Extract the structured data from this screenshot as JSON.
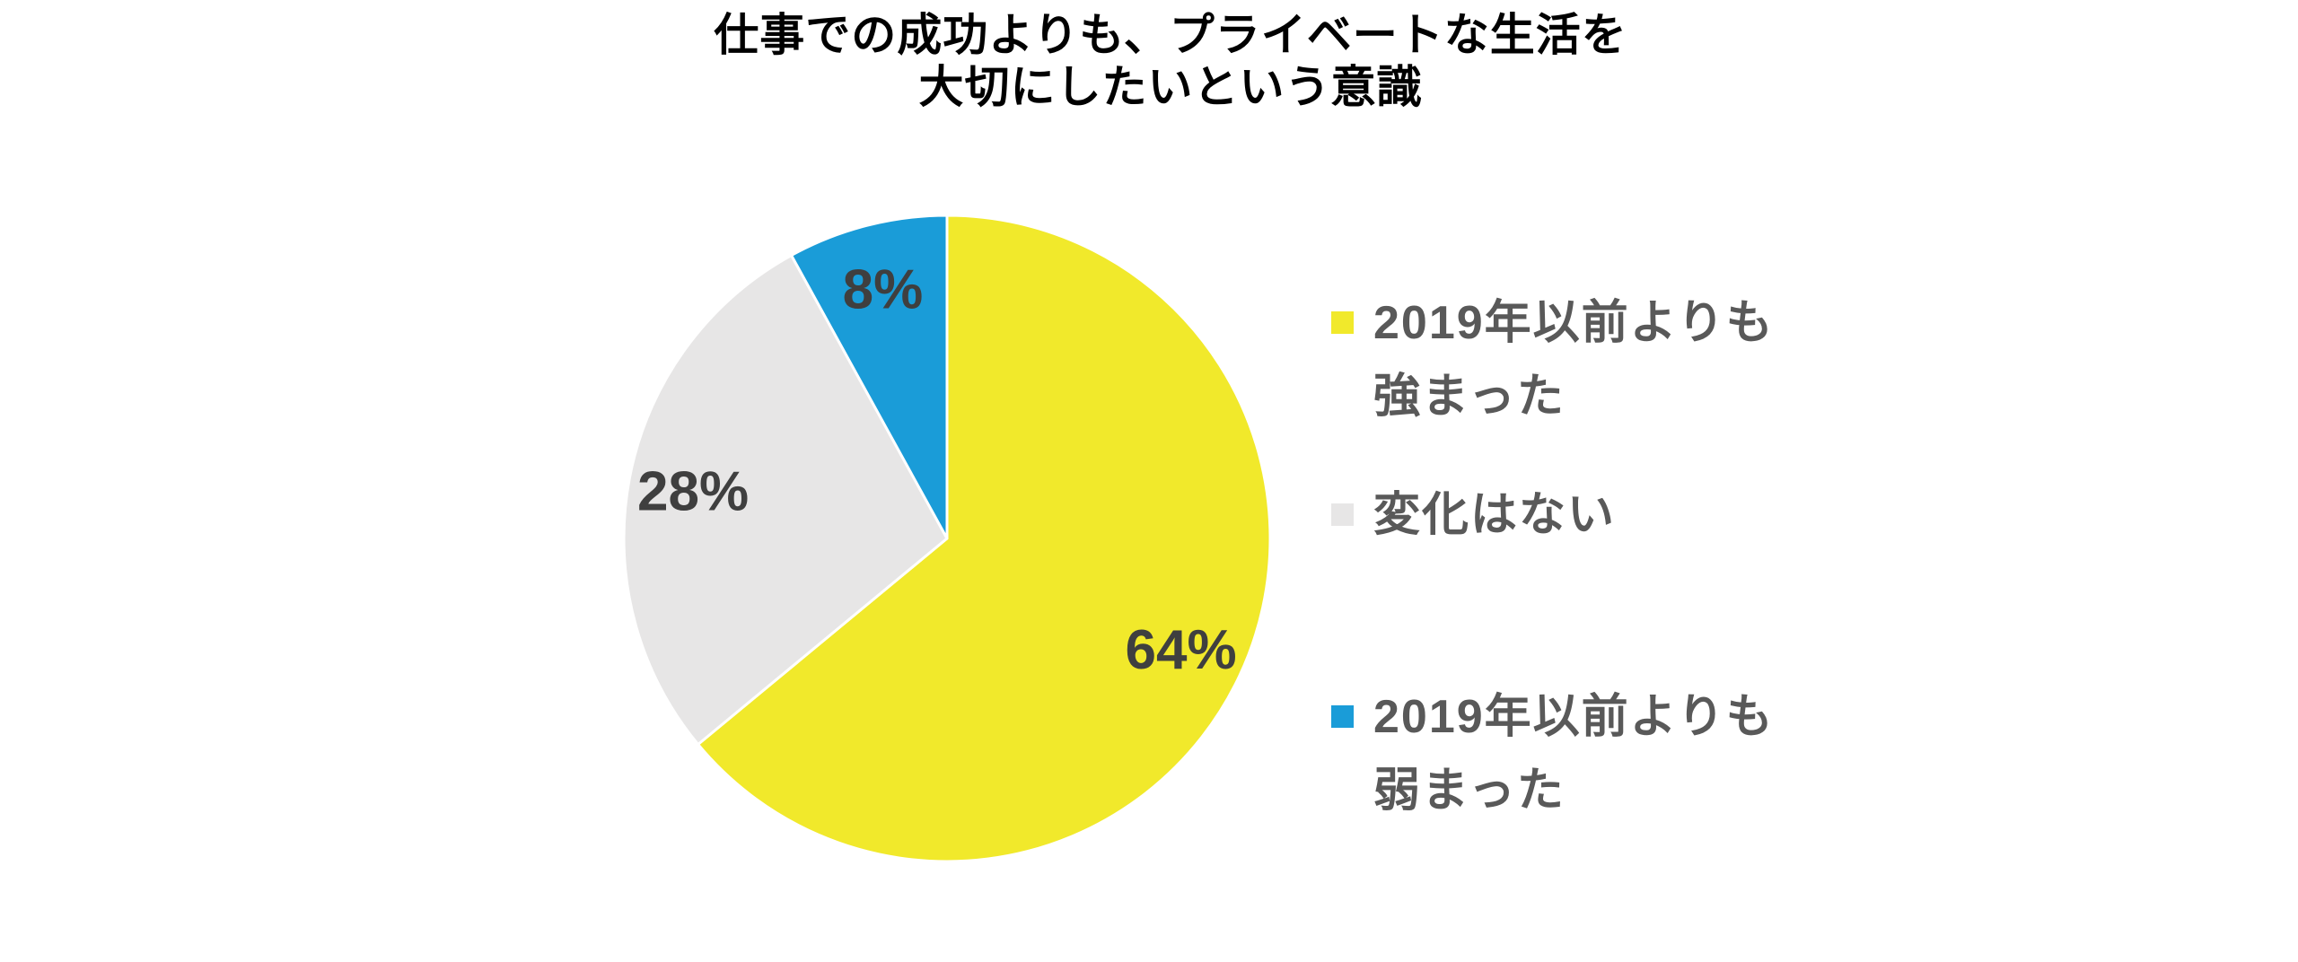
{
  "chart_data": {
    "type": "pie",
    "title": "仕事での成功よりも、プライベートな生活を大切にしたいという意識",
    "title_lines": [
      "仕事での成功よりも、プライベートな生活を",
      "大切にしたいという意識"
    ],
    "categories": [
      "2019年以前よりも強まった",
      "変化はない",
      "2019年以前よりも弱まった"
    ],
    "values": [
      64,
      28,
      8
    ],
    "series": [
      {
        "label": "2019年以前よりも強まった",
        "label_lines": [
          "2019年以前よりも",
          "強まった"
        ],
        "value": 64,
        "display": "64%",
        "color": "#F1E92B"
      },
      {
        "label": "変化はない",
        "label_lines": [
          "変化はない"
        ],
        "value": 28,
        "display": "28%",
        "color": "#E7E6E6"
      },
      {
        "label": "2019年以前よりも弱まった",
        "label_lines": [
          "2019年以前よりも",
          "弱まった"
        ],
        "value": 8,
        "display": "8%",
        "color": "#1A9CD8"
      }
    ],
    "start_angle_deg": 0,
    "direction": "clockwise",
    "slice_border_color": "#FFFFFF",
    "data_label_color": "#3F3F3F",
    "legend_text_color": "#595959",
    "title_color": "#000000",
    "background_color": "#FFFFFF",
    "legend_position": "right",
    "data_labels": "inside-end"
  }
}
